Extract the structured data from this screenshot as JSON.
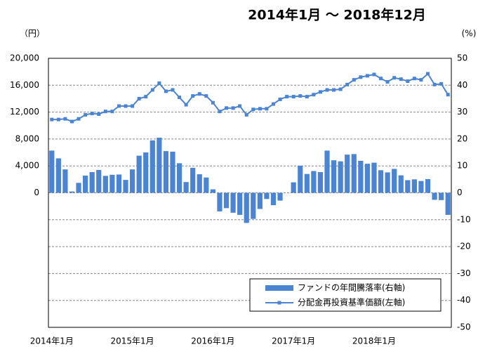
{
  "chart_data": {
    "type": "bar-line",
    "title": "2014年1月 ～ 2018年12月",
    "y_label": "（円）",
    "y2_label": "(%)",
    "categories": [
      "2014年1月",
      null,
      null,
      null,
      null,
      null,
      null,
      null,
      null,
      null,
      null,
      null,
      "2015年1月",
      null,
      null,
      null,
      null,
      null,
      null,
      null,
      null,
      null,
      null,
      null,
      "2016年1月",
      null,
      null,
      null,
      null,
      null,
      null,
      null,
      null,
      null,
      null,
      null,
      "2017年1月",
      null,
      null,
      null,
      null,
      null,
      null,
      null,
      null,
      null,
      null,
      null,
      "2018年1月",
      null,
      null,
      null,
      null,
      null,
      null,
      null,
      null,
      null,
      null,
      null
    ],
    "series": [
      {
        "name": "ファンドの年間騰落率(右軸)",
        "kind": "bar",
        "axis": "y2",
        "color": "#4a84d2",
        "values": [
          15.7,
          12.8,
          8.7,
          0.5,
          3.7,
          6.4,
          7.7,
          8.5,
          6.3,
          6.7,
          6.8,
          4.8,
          8.7,
          13.8,
          15.0,
          19.5,
          20.5,
          15.5,
          15.3,
          11.0,
          4.0,
          9.3,
          6.9,
          5.7,
          1.3,
          -6.9,
          -5.7,
          -7.4,
          -8.2,
          -11.2,
          -9.7,
          -6.0,
          -2.3,
          -4.6,
          -2.9,
          0,
          3.9,
          10.1,
          7.0,
          8.1,
          7.7,
          15.7,
          12.1,
          11.7,
          14.2,
          14.4,
          11.9,
          10.8,
          11.2,
          8.4,
          7.6,
          8.9,
          6.5,
          4.7,
          5.0,
          4.4,
          5.1,
          -2.6,
          -2.7,
          -8.2
        ]
      },
      {
        "name": "分配金再投資基準価額(左軸)",
        "kind": "line",
        "axis": "y",
        "color": "#4a84d2",
        "values": [
          10900,
          10900,
          11000,
          10600,
          11000,
          11600,
          11800,
          11700,
          12100,
          12100,
          12900,
          12900,
          12900,
          14000,
          14300,
          15300,
          16300,
          15100,
          15300,
          14200,
          13100,
          14400,
          14700,
          14400,
          13400,
          12100,
          12600,
          12600,
          12900,
          11600,
          12400,
          12500,
          12500,
          13200,
          13900,
          14300,
          14300,
          14400,
          14300,
          14600,
          15000,
          15300,
          15300,
          15400,
          16100,
          16800,
          17200,
          17400,
          17600,
          17000,
          16500,
          17100,
          16900,
          16600,
          17000,
          16800,
          17700,
          16100,
          16200,
          14600
        ]
      }
    ],
    "ylim": [
      -20000,
      20000
    ],
    "yticks": [
      0,
      {
        "value": 4000,
        "label": "4,000"
      },
      {
        "value": 8000,
        "label": "8,000"
      },
      {
        "value": 12000,
        "label": "12,000"
      },
      {
        "value": 16000,
        "label": "16,000"
      },
      {
        "value": 20000,
        "label": "20,000"
      }
    ],
    "y2lim": [
      -50,
      50
    ],
    "y2ticks": [
      -50,
      -40,
      -30,
      -20,
      -10,
      0,
      10,
      20,
      30,
      40,
      50
    ],
    "grid": true,
    "legend": "lower right"
  }
}
